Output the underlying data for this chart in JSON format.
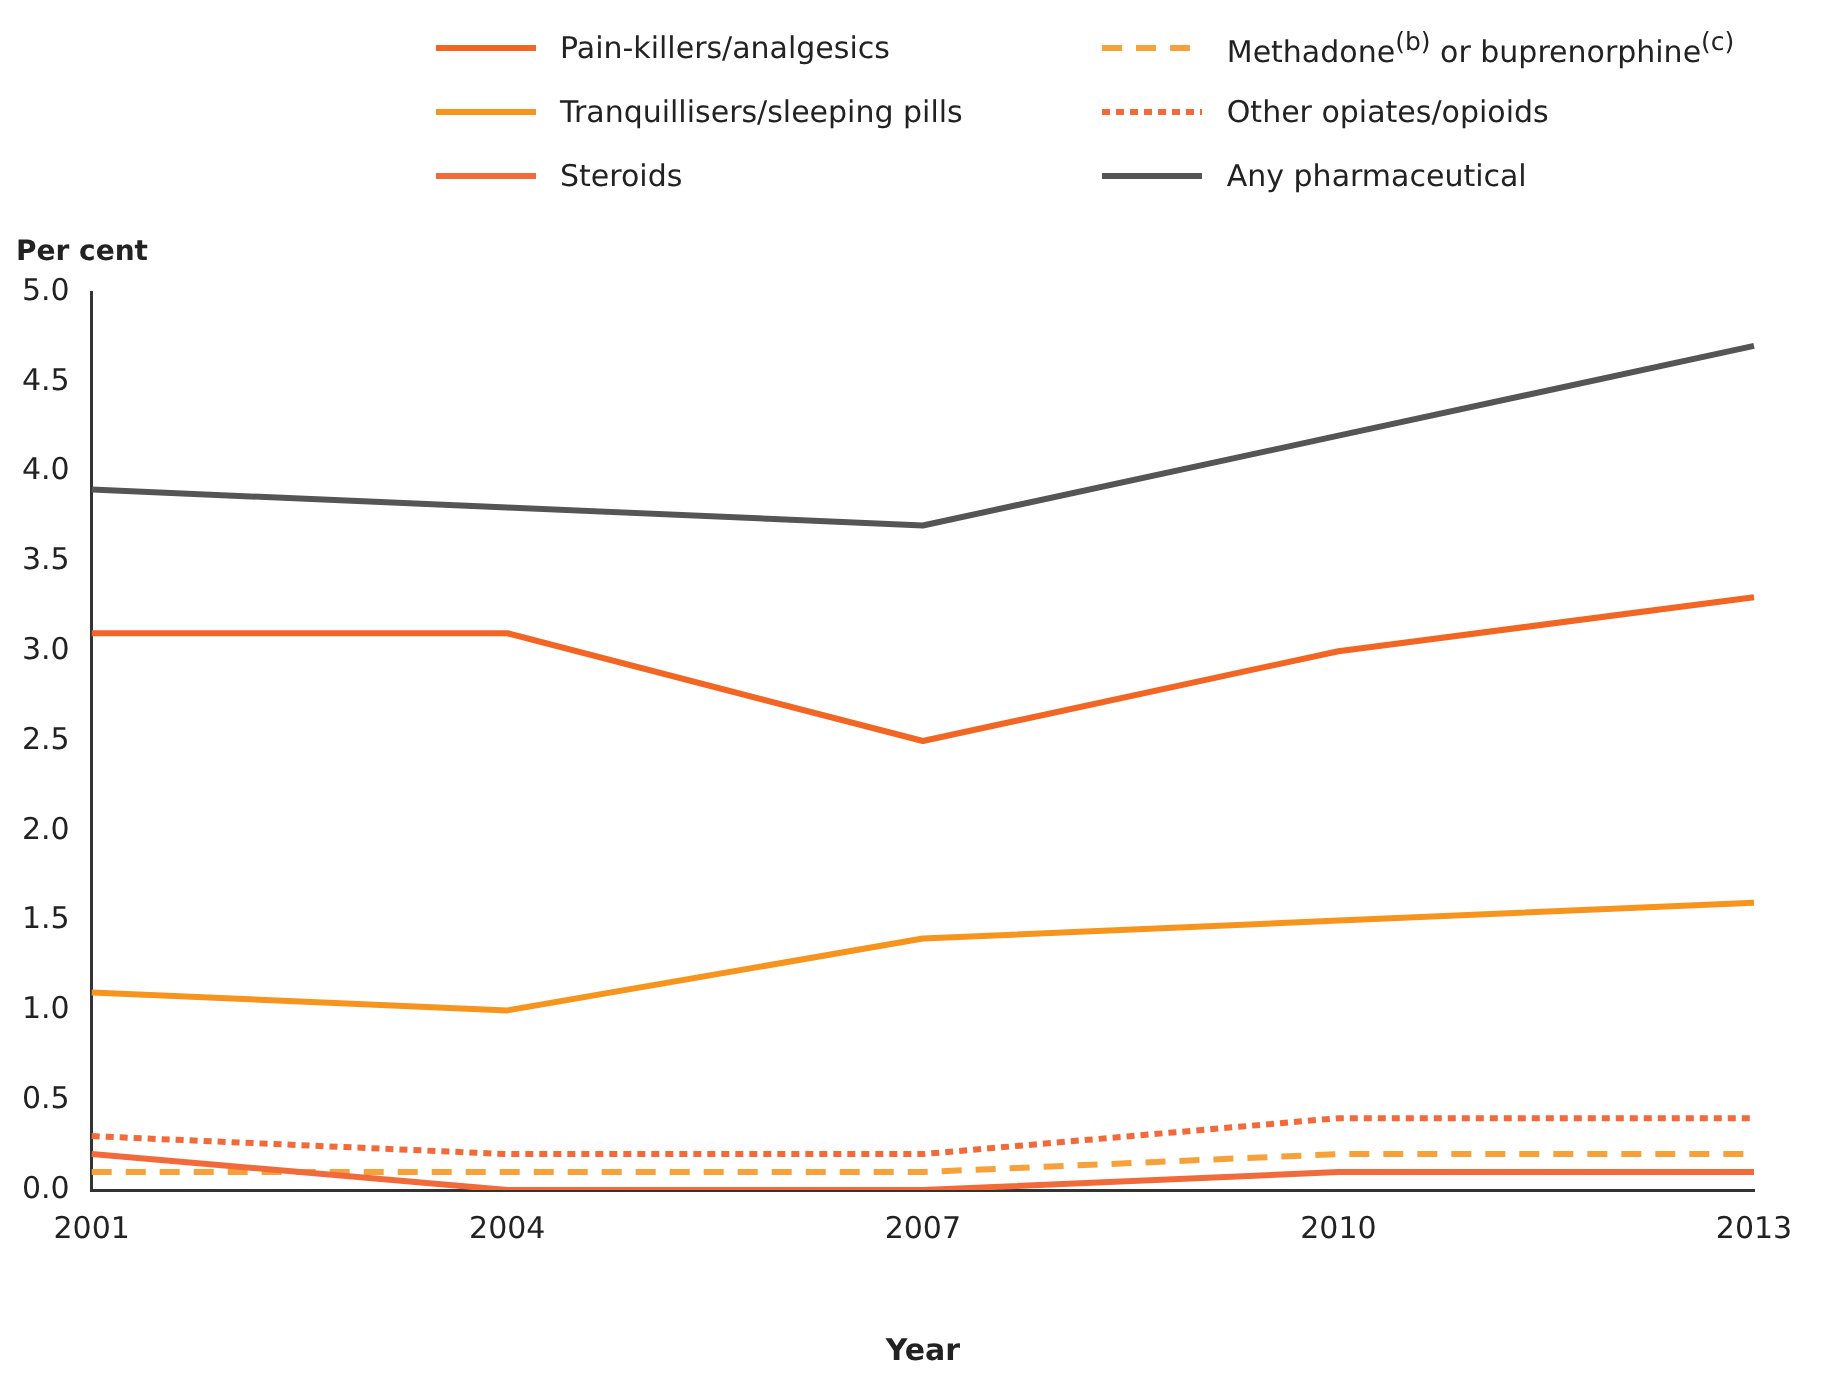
{
  "chart_data": {
    "type": "line",
    "xlabel": "Year",
    "ylabel": "Per cent",
    "categories": [
      "2001",
      "2004",
      "2007",
      "2010",
      "2013"
    ],
    "ylim": [
      0,
      5
    ],
    "yticks": [
      {
        "value": 0,
        "label": "0.0"
      },
      {
        "value": 0.5,
        "label": "0.5"
      },
      {
        "value": 1,
        "label": "1.0"
      },
      {
        "value": 1.5,
        "label": "1.5"
      },
      {
        "value": 2,
        "label": "2.0"
      },
      {
        "value": 2.5,
        "label": "2.5"
      },
      {
        "value": 3,
        "label": "3.0"
      },
      {
        "value": 3.5,
        "label": "3.5"
      },
      {
        "value": 4,
        "label": "4.0"
      },
      {
        "value": 4.5,
        "label": "4.5"
      },
      {
        "value": 5,
        "label": "5.0"
      }
    ],
    "grid": false,
    "legend": "top",
    "marker": "none",
    "series": [
      {
        "name": "Pain-killers/analgesics",
        "color": "#f26522",
        "line_style": "solid",
        "values": [
          3.1,
          3.1,
          2.5,
          3.0,
          3.3
        ]
      },
      {
        "name": "Tranquillisers/sleeping pills",
        "color": "#f7941d",
        "line_style": "solid",
        "values": [
          1.1,
          1.0,
          1.4,
          1.5,
          1.6
        ]
      },
      {
        "name": "Steroids",
        "color": "#f26a3a",
        "line_style": "solid",
        "values": [
          0.2,
          0,
          0,
          0.1,
          0.1
        ]
      },
      {
        "name": "Methadone$^{(b)}$ or buprenorphine$^{(c)}$",
        "color": "#f7a13a",
        "line_style": "dashed",
        "values": [
          0.1,
          0.1,
          0.1,
          0.2,
          0.2
        ]
      },
      {
        "name": "Other opiates/opioids",
        "color": "#f26a3a",
        "line_style": "dotted",
        "values": [
          0.3,
          0.2,
          0.2,
          0.4,
          0.4
        ]
      },
      {
        "name": "Any pharmaceutical",
        "color": "#555555",
        "line_style": "solid",
        "values": [
          3.9,
          3.8,
          3.7,
          4.2,
          4.7
        ]
      }
    ]
  }
}
